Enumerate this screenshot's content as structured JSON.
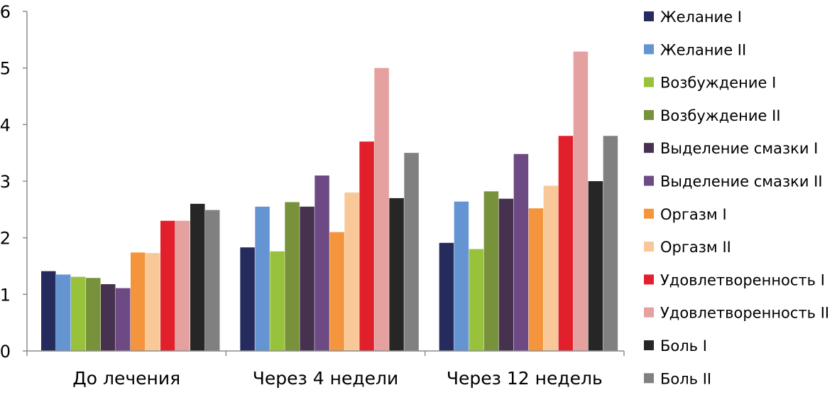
{
  "chart_data": {
    "type": "bar",
    "title": "",
    "xlabel": "",
    "ylabel": "",
    "ylim": [
      0,
      6
    ],
    "yticks": [
      "0",
      "1",
      "2",
      "3",
      "4",
      "5",
      "6"
    ],
    "grid": false,
    "legend_position": "right",
    "categories": [
      "До лечения",
      "Через 4 недели",
      "Через 12 недель"
    ],
    "series": [
      {
        "name": "Желание I",
        "color": "#262b5e",
        "values": [
          1.41,
          1.83,
          1.91
        ]
      },
      {
        "name": "Желание II",
        "color": "#6495d2",
        "values": [
          1.35,
          2.55,
          2.64
        ]
      },
      {
        "name": "Возбуждение  I",
        "color": "#99c23c",
        "values": [
          1.31,
          1.76,
          1.8
        ]
      },
      {
        "name": "Возбуждение II",
        "color": "#77923a",
        "values": [
          1.29,
          2.63,
          2.82
        ]
      },
      {
        "name": "Выделение смазки I",
        "color": "#46324f",
        "values": [
          1.18,
          2.55,
          2.69
        ]
      },
      {
        "name": "Выделение смазки II",
        "color": "#6d4a84",
        "values": [
          1.11,
          3.1,
          3.48
        ]
      },
      {
        "name": "Оргазм I",
        "color": "#f4953d",
        "values": [
          1.74,
          2.1,
          2.52
        ]
      },
      {
        "name": "Оргазм II",
        "color": "#f9c898",
        "values": [
          1.73,
          2.8,
          2.92
        ]
      },
      {
        "name": "Удовлетворенность I",
        "color": "#e2202b",
        "values": [
          2.3,
          3.7,
          3.8
        ]
      },
      {
        "name": "Удовлетворенность II",
        "color": "#e5a19f",
        "values": [
          2.3,
          5.0,
          5.29
        ]
      },
      {
        "name": "Боль I",
        "color": "#262626",
        "values": [
          2.6,
          2.7,
          3.0
        ]
      },
      {
        "name": "Боль II",
        "color": "#808080",
        "values": [
          2.49,
          3.5,
          3.8
        ]
      }
    ]
  }
}
